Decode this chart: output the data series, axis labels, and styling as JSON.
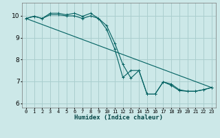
{
  "xlabel": "Humidex (Indice chaleur)",
  "bg_color": "#cce8e8",
  "grid_color": "#aacece",
  "line_color": "#006060",
  "xlim": [
    -0.5,
    23.5
  ],
  "ylim": [
    5.8,
    10.6
  ],
  "yticks": [
    6,
    7,
    8,
    9,
    10
  ],
  "xticks": [
    0,
    1,
    2,
    3,
    4,
    5,
    6,
    7,
    8,
    9,
    10,
    11,
    12,
    13,
    14,
    15,
    16,
    17,
    18,
    19,
    20,
    21,
    22,
    23
  ],
  "series1": {
    "x": [
      0,
      1,
      2,
      3,
      4,
      5,
      6,
      7,
      8,
      9,
      10,
      11,
      12,
      13,
      14,
      15,
      16,
      17,
      18,
      19,
      20,
      21,
      22,
      23
    ],
    "y": [
      9.88,
      9.98,
      9.88,
      10.12,
      10.12,
      10.05,
      10.12,
      9.98,
      10.12,
      9.88,
      9.55,
      8.75,
      7.78,
      7.15,
      7.5,
      6.42,
      6.42,
      6.98,
      6.88,
      6.62,
      6.55,
      6.55,
      6.62,
      6.72
    ]
  },
  "series2": {
    "x": [
      0,
      1,
      2,
      3,
      4,
      5,
      6,
      7,
      8,
      9,
      10,
      11,
      12,
      13,
      14,
      15,
      16,
      17,
      18,
      19,
      20,
      21,
      22,
      23
    ],
    "y": [
      9.88,
      9.98,
      9.88,
      10.05,
      10.05,
      10.0,
      10.0,
      9.88,
      10.0,
      9.88,
      9.38,
      8.48,
      7.18,
      7.5,
      7.5,
      6.42,
      6.42,
      6.98,
      6.82,
      6.58,
      6.55,
      6.55,
      6.62,
      6.72
    ]
  },
  "series3": {
    "x": [
      0,
      23
    ],
    "y": [
      9.88,
      6.72
    ]
  }
}
